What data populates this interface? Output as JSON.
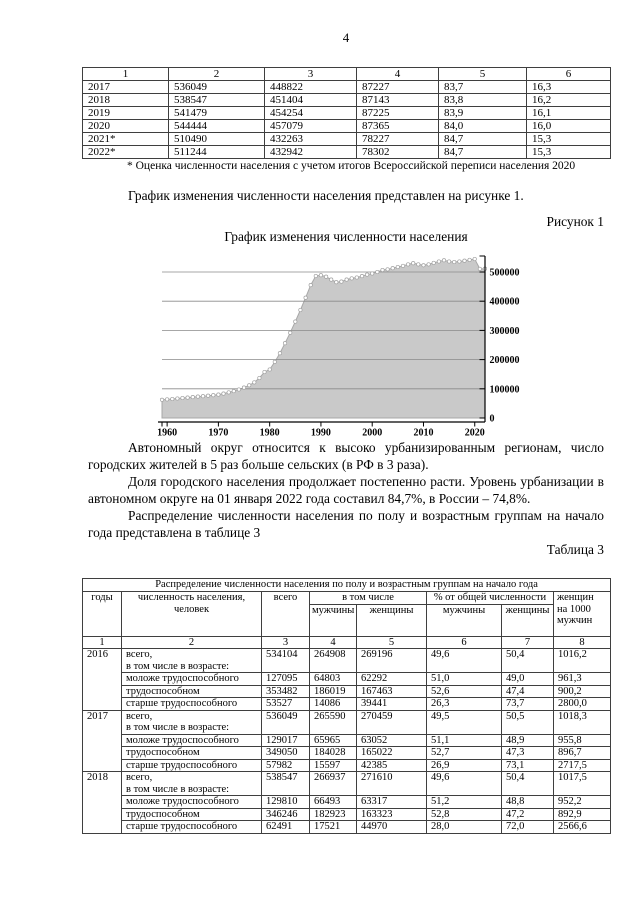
{
  "page": {
    "number": "4"
  },
  "table1": {
    "headers": [
      "1",
      "2",
      "3",
      "4",
      "5",
      "6"
    ],
    "rows": [
      [
        "2017",
        "536049",
        "448822",
        "87227",
        "83,7",
        "16,3"
      ],
      [
        "2018",
        "538547",
        "451404",
        "87143",
        "83,8",
        "16,2"
      ],
      [
        "2019",
        "541479",
        "454254",
        "87225",
        "83,9",
        "16,1"
      ],
      [
        "2020",
        "544444",
        "457079",
        "87365",
        "84,0",
        "16,0"
      ],
      [
        "2021*",
        "510490",
        "432263",
        "78227",
        "84,7",
        "15,3"
      ],
      [
        "2022*",
        "511244",
        "432942",
        "78302",
        "84,7",
        "15,3"
      ]
    ],
    "footnote": "* Оценка численности населения с учетом итогов Всероссийской переписи населения 2020"
  },
  "paragraphs": {
    "p1": "График изменения численности населения представлен на рисунке 1.",
    "figure_label": "Рисунок 1",
    "chart_title": "График изменения численности населения",
    "p2": "Автономный округ относится к высоко урбанизированным регионам, число городских жителей в 5 раз больше сельских (в РФ в 3 раза).",
    "p3": "Доля городского населения продолжает постепенно расти. Уровень урбанизации в автономном округе на 01 января 2022 года составил 84,7%, в России – 74,8%.",
    "p4": "Распределение численности населения по полу и возрастным группам на начало года представлена в таблице 3",
    "table_label": "Таблица 3"
  },
  "chart_data": {
    "type": "area",
    "title": "График изменения численности населения",
    "x": [
      1959,
      1960,
      1961,
      1962,
      1963,
      1964,
      1965,
      1966,
      1967,
      1968,
      1969,
      1970,
      1971,
      1972,
      1973,
      1974,
      1975,
      1976,
      1977,
      1978,
      1979,
      1980,
      1981,
      1982,
      1983,
      1984,
      1985,
      1986,
      1987,
      1988,
      1989,
      1990,
      1991,
      1992,
      1993,
      1994,
      1995,
      1996,
      1997,
      1998,
      1999,
      2000,
      2001,
      2002,
      2003,
      2004,
      2005,
      2006,
      2007,
      2008,
      2009,
      2010,
      2011,
      2012,
      2013,
      2014,
      2015,
      2016,
      2017,
      2018,
      2019,
      2020,
      2021,
      2022
    ],
    "values": [
      62334,
      63700,
      65200,
      66800,
      68400,
      70000,
      71600,
      73200,
      74800,
      76500,
      78200,
      79977,
      83500,
      87500,
      92000,
      97500,
      104000,
      112000,
      122000,
      137000,
      157616,
      166000,
      192000,
      222000,
      256000,
      292000,
      330000,
      370000,
      412000,
      455000,
      486164,
      489000,
      484000,
      474000,
      465000,
      467000,
      474000,
      478000,
      481000,
      486000,
      491000,
      495000,
      500000,
      507006,
      509000,
      513000,
      517000,
      521000,
      526000,
      530000,
      526000,
      522904,
      526000,
      531000,
      536000,
      540000,
      536000,
      534104,
      536049,
      538547,
      541479,
      544444,
      510490,
      511244
    ],
    "xticks": [
      1960,
      1970,
      1980,
      1990,
      2000,
      2010,
      2020
    ],
    "yticks": [
      0,
      100000,
      200000,
      300000,
      400000,
      500000
    ],
    "xlim": [
      1959,
      2022
    ],
    "ylim": [
      0,
      565000
    ],
    "grid": true,
    "legend": "none",
    "y_axis_side": "right",
    "colors": {
      "area_fill": "#c9c9c9",
      "area_edge": "#a8a8a8",
      "gridline": "#8a8a8a",
      "axis": "#000000",
      "marker_fill": "#ffffff",
      "marker_stroke": "#a0a0a0"
    }
  },
  "table3": {
    "title": "Распределение численности населения по полу и возрастным группам на начало года",
    "header": {
      "col1": "годы",
      "col2": "численность населения,\nчеловек",
      "col3": "всего",
      "group1": "в том числе",
      "group2": "% от общей численности",
      "col4": "мужчины",
      "col5": "женщины",
      "col6": "мужчины",
      "col7": "женщины",
      "col8": "женщин\nна 1000\nмужчин"
    },
    "numbering": [
      "1",
      "2",
      "3",
      "4",
      "5",
      "6",
      "7",
      "8"
    ],
    "blocks": [
      {
        "year": "2016",
        "rows": [
          [
            "всего,\nв том числе в возрасте:",
            "534104",
            "264908",
            "269196",
            "49,6",
            "50,4",
            "1016,2"
          ],
          [
            "моложе трудоспособного",
            "127095",
            "64803",
            "62292",
            "51,0",
            "49,0",
            "961,3"
          ],
          [
            "трудоспособном",
            "353482",
            "186019",
            "167463",
            "52,6",
            "47,4",
            "900,2"
          ],
          [
            "старше трудоспособного",
            "53527",
            "14086",
            "39441",
            "26,3",
            "73,7",
            "2800,0"
          ]
        ]
      },
      {
        "year": "2017",
        "rows": [
          [
            "всего,\nв том числе в возрасте:",
            "536049",
            "265590",
            "270459",
            "49,5",
            "50,5",
            "1018,3"
          ],
          [
            "моложе трудоспособного",
            "129017",
            "65965",
            "63052",
            "51,1",
            "48,9",
            "955,8"
          ],
          [
            "трудоспособном",
            "349050",
            "184028",
            "165022",
            "52,7",
            "47,3",
            "896,7"
          ],
          [
            "старше трудоспособного",
            "57982",
            "15597",
            "42385",
            "26,9",
            "73,1",
            "2717,5"
          ]
        ]
      },
      {
        "year": "2018",
        "rows": [
          [
            "всего,\nв том числе в возрасте:",
            "538547",
            "266937",
            "271610",
            "49,6",
            "50,4",
            "1017,5"
          ],
          [
            "моложе трудоспособного",
            "129810",
            "66493",
            "63317",
            "51,2",
            "48,8",
            "952,2"
          ],
          [
            "трудоспособном",
            "346246",
            "182923",
            "163323",
            "52,8",
            "47,2",
            "892,9"
          ],
          [
            "старше трудоспособного",
            "62491",
            "17521",
            "44970",
            "28,0",
            "72,0",
            "2566,6"
          ]
        ]
      }
    ]
  }
}
